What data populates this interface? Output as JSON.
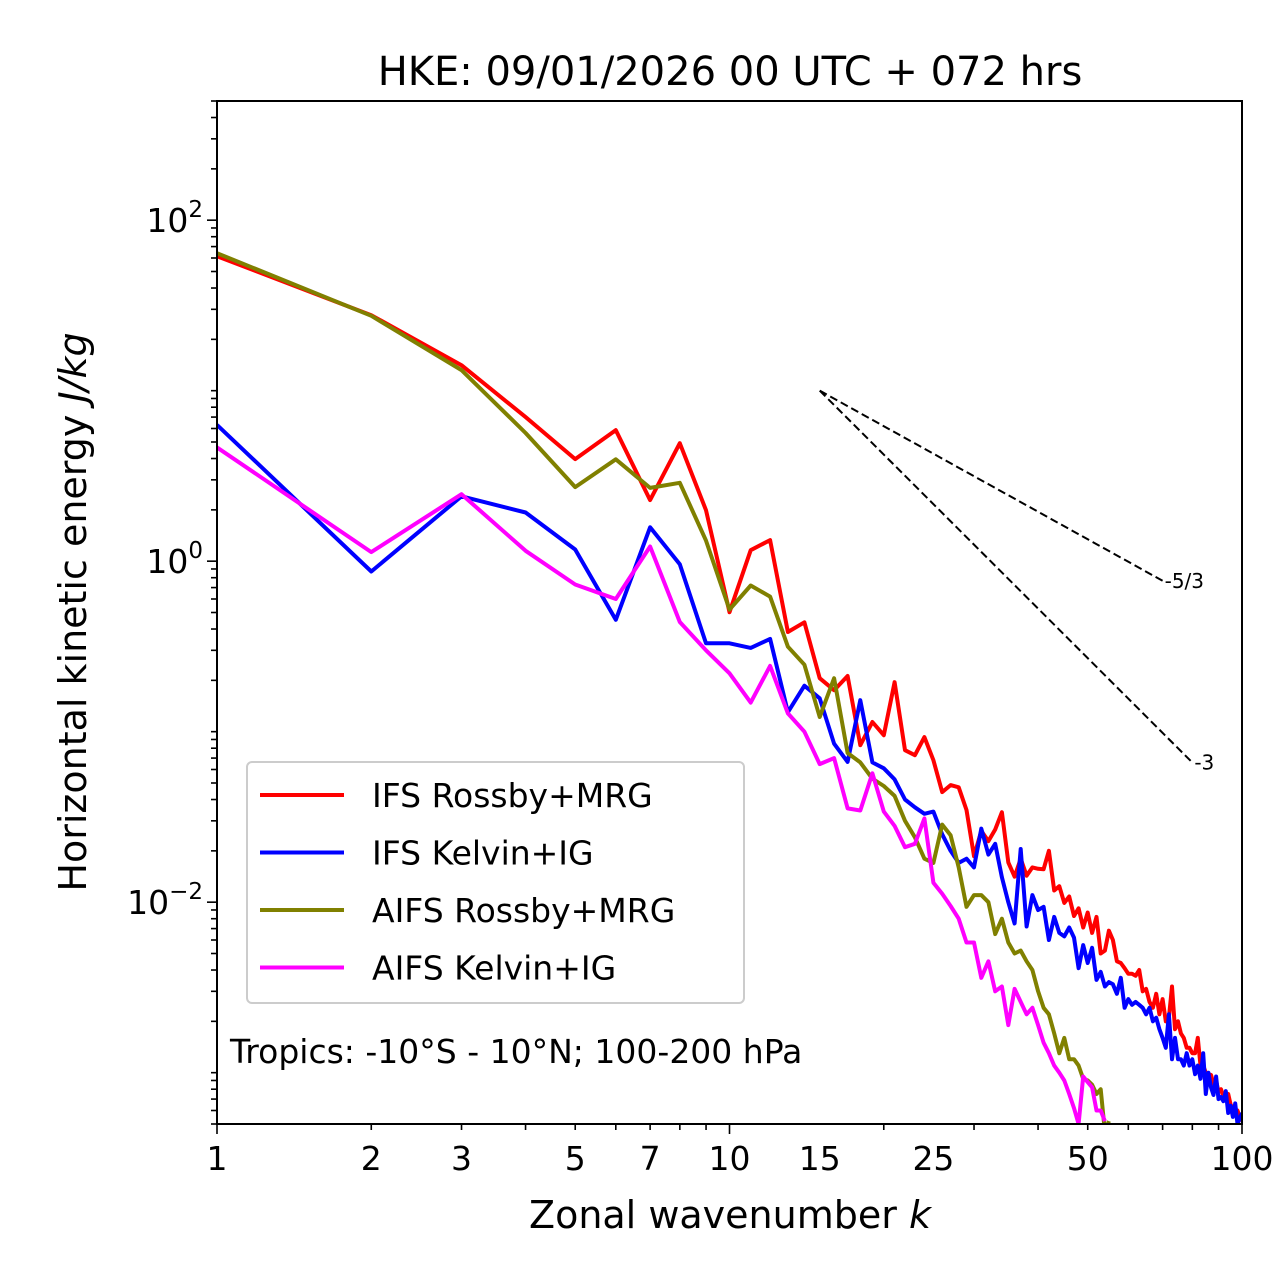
{
  "chart_data": {
    "type": "line",
    "title": "HKE: 09/01/2026 00 UTC + 072 hrs",
    "xlabel": "Zonal wavenumber",
    "xlabel_italic": "k",
    "ylabel": "Horizontal kinetic energy",
    "ylabel_italic": "J/kg",
    "xscale": "log",
    "yscale": "log",
    "xlim": [
      1,
      100
    ],
    "ylim": [
      0.0005,
      500
    ],
    "xticks": [
      1,
      2,
      3,
      5,
      7,
      10,
      15,
      25,
      50,
      100
    ],
    "xtick_labels": [
      "1",
      "2",
      "3",
      "5",
      "7",
      "10",
      "15",
      "25",
      "50",
      "100"
    ],
    "yticks": [
      100,
      1,
      0.01
    ],
    "ytick_labels": [
      {
        "base": "10",
        "exp": "2"
      },
      {
        "base": "10",
        "exp": "0"
      },
      {
        "base": "10",
        "exp": "−2"
      }
    ],
    "grid": false,
    "legend_position": "lower-left",
    "annotation": "Tropics: -10°S - 10°N; 100-200 hPa",
    "reference_lines": [
      {
        "label": "-5/3",
        "slope": -1.6667,
        "k_start": 15,
        "k_end": 70,
        "value_start": 10
      },
      {
        "label": "-3",
        "slope": -3,
        "k_start": 15,
        "k_end": 80,
        "value_start": 10
      }
    ],
    "series": [
      {
        "name": "IFS Rossby+MRG",
        "color": "#ff0000",
        "values": [
          61.5,
          27.7,
          14.1,
          7.0,
          3.97,
          5.87,
          2.28,
          4.92,
          1.99,
          0.502,
          1.16,
          1.33,
          0.384,
          0.438,
          0.206,
          0.175,
          0.212,
          0.0833,
          0.114,
          0.0953,
          0.195,
          0.0779,
          0.0728,
          0.0929,
          0.068,
          0.0442,
          0.0486,
          0.0472,
          0.0347,
          0.0186,
          0.0262,
          0.0228,
          0.0267,
          0.0337,
          0.0171,
          0.0141,
          0.018,
          0.0143,
          0.016,
          0.0157,
          0.0156,
          0.02,
          0.0117,
          0.0124,
          0.0099,
          0.0108,
          0.0083,
          0.0092,
          0.0071,
          0.0087,
          0.0066,
          0.0082,
          0.005,
          0.0052,
          0.0068,
          0.006,
          0.0045,
          0.0044,
          0.0041,
          0.0038,
          0.0038,
          0.0037,
          0.004,
          0.003,
          0.0031,
          0.0026,
          0.0024,
          0.0029,
          0.0022,
          0.0027,
          0.002,
          0.0021,
          0.0032,
          0.0018,
          0.002,
          0.0017,
          0.0016,
          0.0014,
          0.0014,
          0.0013,
          0.0013,
          0.0016,
          0.0011,
          0.0011,
          0.001,
          0.00098,
          0.00097,
          0.00086,
          0.0009,
          0.00077,
          0.0008,
          0.00072,
          0.00069,
          0.00075,
          0.00065,
          0.00062,
          0.00057,
          0.0006,
          0.00055,
          0.00052
        ]
      },
      {
        "name": "IFS Kelvin+IG",
        "color": "#0000ff",
        "values": [
          6.3,
          0.87,
          2.4,
          1.93,
          1.17,
          0.453,
          1.58,
          0.96,
          0.33,
          0.33,
          0.31,
          0.35,
          0.13,
          0.186,
          0.157,
          0.085,
          0.0665,
          0.153,
          0.066,
          0.061,
          0.0525,
          0.04,
          0.036,
          0.033,
          0.034,
          0.025,
          0.02,
          0.017,
          0.018,
          0.016,
          0.027,
          0.019,
          0.022,
          0.014,
          0.01,
          0.0075,
          0.0205,
          0.0072,
          0.011,
          0.009,
          0.0094,
          0.006,
          0.0082,
          0.0066,
          0.0063,
          0.0071,
          0.0062,
          0.0041,
          0.0056,
          0.0044,
          0.0054,
          0.0035,
          0.0039,
          0.0032,
          0.0034,
          0.0033,
          0.0029,
          0.0036,
          0.0024,
          0.0027,
          0.0025,
          0.0026,
          0.0025,
          0.0024,
          0.0022,
          0.0024,
          0.002,
          0.0021,
          0.0018,
          0.0016,
          0.0014,
          0.0022,
          0.0012,
          0.0016,
          0.0012,
          0.0012,
          0.0011,
          0.0013,
          0.0011,
          0.0012,
          0.00098,
          0.0011,
          0.00092,
          0.0013,
          0.00075,
          0.001,
          0.00082,
          0.00074,
          0.00095,
          0.0007,
          0.00072,
          0.00068,
          0.00078,
          0.00058,
          0.00064,
          0.00055,
          0.00066,
          0.0005,
          0.00054,
          0.00058
        ]
      },
      {
        "name": "AIFS Rossby+MRG",
        "color": "#808000",
        "values": [
          64.0,
          27.5,
          13.2,
          5.65,
          2.72,
          3.96,
          2.69,
          2.88,
          1.32,
          0.52,
          0.72,
          0.62,
          0.315,
          0.247,
          0.122,
          0.206,
          0.075,
          0.066,
          0.053,
          0.048,
          0.042,
          0.03,
          0.024,
          0.018,
          0.017,
          0.0285,
          0.0247,
          0.016,
          0.0094,
          0.011,
          0.011,
          0.01,
          0.0065,
          0.008,
          0.0058,
          0.005,
          0.0052,
          0.0045,
          0.004,
          0.003,
          0.0024,
          0.0022,
          0.0017,
          0.0013,
          0.0016,
          0.0012,
          0.0012,
          0.0011,
          0.00092,
          0.0009,
          0.00085,
          0.00075,
          0.0008,
          0.00045,
          0.00052
        ]
      },
      {
        "name": "AIFS Kelvin+IG",
        "color": "#ff00ff",
        "values": [
          4.65,
          1.13,
          2.47,
          1.15,
          0.73,
          0.6,
          1.22,
          0.44,
          0.3,
          0.22,
          0.148,
          0.243,
          0.128,
          0.1,
          0.0645,
          0.07,
          0.0355,
          0.0345,
          0.057,
          0.034,
          0.028,
          0.021,
          0.022,
          0.031,
          0.013,
          0.0112,
          0.0095,
          0.008,
          0.0058,
          0.0058,
          0.0036,
          0.0045,
          0.003,
          0.0032,
          0.0019,
          0.0031,
          0.0026,
          0.0022,
          0.0024,
          0.0019,
          0.0015,
          0.0013,
          0.0011,
          0.001,
          0.0009,
          0.00075,
          0.00062,
          0.0005,
          0.00095,
          0.00088,
          0.00082,
          0.0006,
          0.0006,
          0.00052
        ]
      }
    ]
  }
}
